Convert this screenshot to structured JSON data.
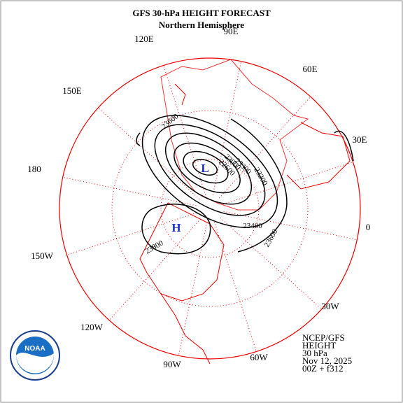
{
  "header": {
    "title": "GFS 30-hPa HEIGHT FORECAST",
    "subtitle": "Northern Hemisphere"
  },
  "longitude_labels": [
    "90E",
    "60E",
    "30E",
    "0",
    "30W",
    "60W",
    "90W",
    "120W",
    "150W",
    "180",
    "150E",
    "120E"
  ],
  "contour_labels": [
    "23600",
    "22600",
    "23000",
    "23300",
    "23200",
    "23400",
    "23600",
    "23800"
  ],
  "centers": [
    "L",
    "H"
  ],
  "info": [
    "NCEP/GFS",
    "HEIGHT",
    "30 hPa",
    "Nov 12, 2025",
    "00Z + f312"
  ],
  "logo": "NOAA"
}
